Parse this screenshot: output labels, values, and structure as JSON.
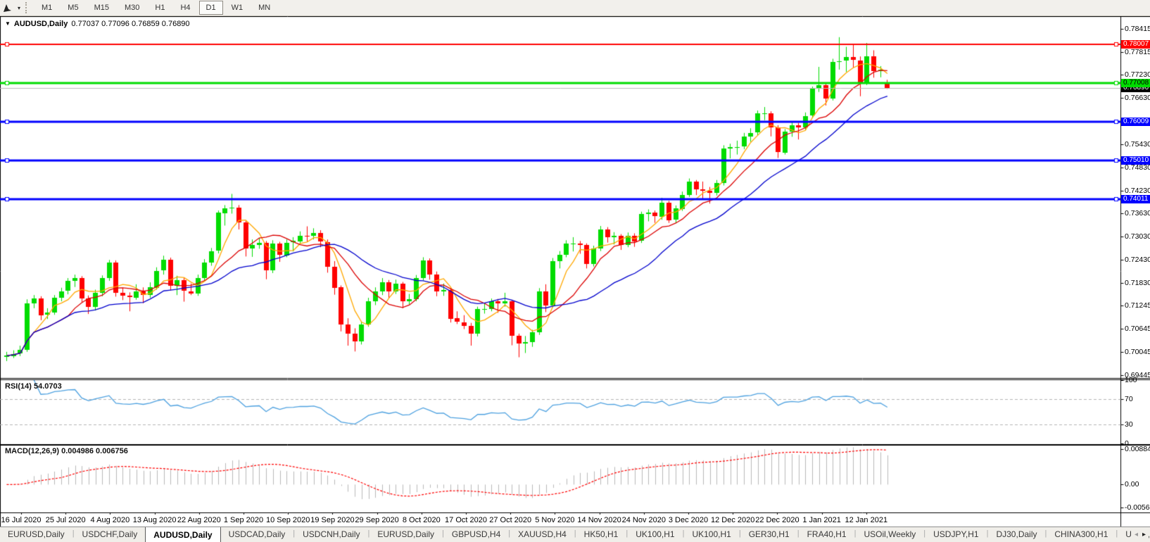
{
  "icons": {
    "dropdown_triangle": "▼",
    "caret_down": "▾",
    "scroll_left": "◂",
    "scroll_right": "▸"
  },
  "toolbar": {
    "timeframes": [
      "M1",
      "M5",
      "M15",
      "M30",
      "H1",
      "H4",
      "D1",
      "W1",
      "MN"
    ],
    "active_timeframe": "D1"
  },
  "chart_header": {
    "symbol_label": "AUDUSD,Daily",
    "ohlc_label": "0.77037 0.77096 0.76859 0.76890"
  },
  "panes": {
    "rsi_label": "RSI(14) 54.0703",
    "macd_label": "MACD(12,26,9) 0.004986 0.006756"
  },
  "tabs": {
    "items": [
      "EURUSD,Daily",
      "USDCHF,Daily",
      "AUDUSD,Daily",
      "USDCAD,Daily",
      "USDCNH,Daily",
      "EURUSD,Daily",
      "GBPUSD,H4",
      "XAUUSD,H4",
      "HK50,H1",
      "UK100,H1",
      "UK100,H1",
      "GER30,H1",
      "FRA40,H1",
      "USOil,Weekly",
      "USDJPY,H1",
      "DJ30,Daily",
      "CHINA300,H1",
      "USOil,"
    ],
    "active_index": 2
  },
  "chart_data": {
    "type": "candlestick",
    "symbol": "AUDUSD",
    "timeframe": "Daily",
    "current": {
      "open": 0.77037,
      "high": 0.77096,
      "low": 0.76859,
      "close": 0.7689
    },
    "ylim": [
      0.69391,
      0.78743
    ],
    "price_ticks": [
      "0.78415",
      "0.77815",
      "0.77230",
      "0.76630",
      "0.75430",
      "0.74830",
      "0.74230",
      "0.73630",
      "0.73030",
      "0.72430",
      "0.71830",
      "0.71245",
      "0.70645",
      "0.70045",
      "0.69445"
    ],
    "badges": [
      {
        "label": "0.78007",
        "price": 0.78007,
        "bg": "#FF0000",
        "fg": "#FFFFFF"
      },
      {
        "label": "0.76890",
        "price": 0.7689,
        "bg": "#000000",
        "fg": "#FFFFFF"
      },
      {
        "label": "0.77008",
        "price": 0.77008,
        "bg": "#00DC00",
        "fg": "#000000"
      },
      {
        "label": "0.76009",
        "price": 0.76009,
        "bg": "#0000FF",
        "fg": "#FFFFFF"
      },
      {
        "label": "0.75010",
        "price": 0.7501,
        "bg": "#0000FF",
        "fg": "#FFFFFF"
      },
      {
        "label": "0.74011",
        "price": 0.74011,
        "bg": "#0000FF",
        "fg": "#FFFFFF"
      }
    ],
    "xticklabels": [
      "16 Jul 2020",
      "25 Jul 2020",
      "4 Aug 2020",
      "13 Aug 2020",
      "22 Aug 2020",
      "1 Sep 2020",
      "10 Sep 2020",
      "19 Sep 2020",
      "29 Sep 2020",
      "8 Oct 2020",
      "17 Oct 2020",
      "27 Oct 2020",
      "5 Nov 2020",
      "14 Nov 2020",
      "24 Nov 2020",
      "3 Dec 2020",
      "12 Dec 2020",
      "22 Dec 2020",
      "1 Jan 2021",
      "12 Jan 2021"
    ],
    "hlines": [
      {
        "price": 0.78007,
        "color": "#FF0000",
        "width": 2
      },
      {
        "price": 0.77008,
        "color": "#00DC00",
        "width": 3
      },
      {
        "price": 0.76009,
        "color": "#0000FF",
        "width": 3
      },
      {
        "price": 0.7501,
        "color": "#0000FF",
        "width": 3
      },
      {
        "price": 0.74011,
        "color": "#0000FF",
        "width": 3
      }
    ],
    "bid_line": {
      "price": 0.7689,
      "color": "#BBBBBB",
      "width": 1
    },
    "overlays": {
      "sma": [
        {
          "period": 5,
          "color": "#FFA800"
        },
        {
          "period": 10,
          "color": "#DC0000"
        },
        {
          "period": 21,
          "color": "#0000CD"
        }
      ]
    },
    "indicators": {
      "rsi": {
        "period": 14,
        "value": 54.0703,
        "levels": [
          70,
          30
        ],
        "ylim": [
          0,
          100
        ],
        "ticks": [
          {
            "label": "100",
            "value": 100
          },
          {
            "label": "70",
            "value": 70
          },
          {
            "label": "30",
            "value": 30
          },
          {
            "label": "0",
            "value": 0
          }
        ],
        "color": "#4DA1E0",
        "level_color": "#B5B5B5"
      },
      "macd": {
        "fast": 12,
        "slow": 26,
        "signal": 9,
        "value": 0.004986,
        "signal_value": 0.006756,
        "ylim": [
          -0.00676,
          0.00971
        ],
        "ticks": [
          {
            "label": "0.00884",
            "value": 0.00884
          },
          {
            "label": "0.00",
            "value": 0
          },
          {
            "label": "-0.00565",
            "value": -0.00565
          }
        ],
        "histogram_color": "#B9B9B9",
        "signal_color": "#FF0000"
      }
    },
    "colors": {
      "bull": "#00DC00",
      "bear": "#FF0000",
      "background": "#FFFFFF",
      "foreground": "#000000"
    },
    "candles": [
      [
        0.6992,
        0.7005,
        0.6981,
        0.6995
      ],
      [
        0.6995,
        0.7009,
        0.6989,
        0.7
      ],
      [
        0.7,
        0.7021,
        0.6994,
        0.701
      ],
      [
        0.701,
        0.7141,
        0.7005,
        0.713
      ],
      [
        0.713,
        0.7152,
        0.7118,
        0.7143
      ],
      [
        0.7143,
        0.7149,
        0.7087,
        0.71
      ],
      [
        0.71,
        0.7118,
        0.709,
        0.7106
      ],
      [
        0.7106,
        0.7152,
        0.7101,
        0.7145
      ],
      [
        0.7145,
        0.7171,
        0.7136,
        0.7162
      ],
      [
        0.7162,
        0.7196,
        0.7154,
        0.7188
      ],
      [
        0.7188,
        0.7205,
        0.7173,
        0.7196
      ],
      [
        0.7196,
        0.7201,
        0.7133,
        0.7143
      ],
      [
        0.7143,
        0.7151,
        0.7103,
        0.7121
      ],
      [
        0.7121,
        0.7166,
        0.7112,
        0.7158
      ],
      [
        0.7158,
        0.7203,
        0.7149,
        0.7196
      ],
      [
        0.7196,
        0.7243,
        0.7189,
        0.7236
      ],
      [
        0.7236,
        0.7242,
        0.7148,
        0.7157
      ],
      [
        0.7157,
        0.7171,
        0.7139,
        0.715
      ],
      [
        0.715,
        0.7159,
        0.711,
        0.7146
      ],
      [
        0.7146,
        0.718,
        0.714,
        0.7162
      ],
      [
        0.7162,
        0.7172,
        0.7131,
        0.7152
      ],
      [
        0.7152,
        0.7185,
        0.7145,
        0.7172
      ],
      [
        0.7172,
        0.7224,
        0.7166,
        0.7215
      ],
      [
        0.7215,
        0.7254,
        0.7205,
        0.7243
      ],
      [
        0.7243,
        0.7249,
        0.7164,
        0.7176
      ],
      [
        0.7176,
        0.7202,
        0.7152,
        0.719
      ],
      [
        0.719,
        0.7198,
        0.7135,
        0.7162
      ],
      [
        0.7162,
        0.7182,
        0.7152,
        0.7156
      ],
      [
        0.7156,
        0.7205,
        0.715,
        0.7196
      ],
      [
        0.7196,
        0.7245,
        0.719,
        0.7236
      ],
      [
        0.7236,
        0.7274,
        0.7228,
        0.7266
      ],
      [
        0.7266,
        0.7371,
        0.726,
        0.7365
      ],
      [
        0.7365,
        0.7385,
        0.7332,
        0.7377
      ],
      [
        0.7377,
        0.7414,
        0.7363,
        0.7378
      ],
      [
        0.7378,
        0.7385,
        0.7322,
        0.734
      ],
      [
        0.734,
        0.7344,
        0.7252,
        0.7272
      ],
      [
        0.7272,
        0.7296,
        0.7251,
        0.7282
      ],
      [
        0.7282,
        0.73,
        0.7272,
        0.7288
      ],
      [
        0.7288,
        0.7292,
        0.7193,
        0.7216
      ],
      [
        0.7216,
        0.7294,
        0.7209,
        0.7286
      ],
      [
        0.7286,
        0.729,
        0.7238,
        0.7256
      ],
      [
        0.7256,
        0.7296,
        0.725,
        0.7288
      ],
      [
        0.7288,
        0.7302,
        0.7265,
        0.7292
      ],
      [
        0.7292,
        0.7317,
        0.7284,
        0.7306
      ],
      [
        0.7306,
        0.733,
        0.729,
        0.7305
      ],
      [
        0.7305,
        0.7325,
        0.7296,
        0.7312
      ],
      [
        0.7312,
        0.732,
        0.7276,
        0.729
      ],
      [
        0.729,
        0.7296,
        0.721,
        0.7226
      ],
      [
        0.7226,
        0.724,
        0.7153,
        0.7172
      ],
      [
        0.7172,
        0.7177,
        0.7058,
        0.7076
      ],
      [
        0.7076,
        0.7092,
        0.7021,
        0.7052
      ],
      [
        0.7052,
        0.7066,
        0.7006,
        0.7032
      ],
      [
        0.7032,
        0.7084,
        0.7024,
        0.7076
      ],
      [
        0.7076,
        0.7145,
        0.707,
        0.7136
      ],
      [
        0.7136,
        0.7172,
        0.7126,
        0.7162
      ],
      [
        0.7162,
        0.7196,
        0.7152,
        0.7186
      ],
      [
        0.7186,
        0.7191,
        0.7144,
        0.7162
      ],
      [
        0.7162,
        0.7192,
        0.7155,
        0.7182
      ],
      [
        0.7182,
        0.7186,
        0.7118,
        0.7136
      ],
      [
        0.7136,
        0.7155,
        0.7128,
        0.7142
      ],
      [
        0.7142,
        0.7204,
        0.7136,
        0.7196
      ],
      [
        0.7196,
        0.725,
        0.719,
        0.7242
      ],
      [
        0.7242,
        0.7247,
        0.7192,
        0.7206
      ],
      [
        0.7206,
        0.7213,
        0.7149,
        0.7162
      ],
      [
        0.7162,
        0.7182,
        0.715,
        0.7166
      ],
      [
        0.7166,
        0.717,
        0.7081,
        0.7092
      ],
      [
        0.7092,
        0.711,
        0.7077,
        0.7082
      ],
      [
        0.7082,
        0.71,
        0.7064,
        0.7072
      ],
      [
        0.7072,
        0.708,
        0.7021,
        0.7052
      ],
      [
        0.7052,
        0.7122,
        0.7045,
        0.7116
      ],
      [
        0.7116,
        0.7132,
        0.7104,
        0.7116
      ],
      [
        0.7116,
        0.7143,
        0.711,
        0.7136
      ],
      [
        0.7136,
        0.7142,
        0.7106,
        0.713
      ],
      [
        0.713,
        0.7158,
        0.7122,
        0.7136
      ],
      [
        0.7136,
        0.714,
        0.7022,
        0.7046
      ],
      [
        0.7046,
        0.7052,
        0.6991,
        0.7026
      ],
      [
        0.7026,
        0.7046,
        0.7002,
        0.703
      ],
      [
        0.703,
        0.7062,
        0.7018,
        0.7056
      ],
      [
        0.7056,
        0.717,
        0.7049,
        0.7162
      ],
      [
        0.7162,
        0.718,
        0.7108,
        0.7126
      ],
      [
        0.7126,
        0.7248,
        0.712,
        0.724
      ],
      [
        0.724,
        0.7266,
        0.7221,
        0.7256
      ],
      [
        0.7256,
        0.7294,
        0.725,
        0.7286
      ],
      [
        0.7286,
        0.7302,
        0.7265,
        0.7286
      ],
      [
        0.7286,
        0.7292,
        0.7259,
        0.7282
      ],
      [
        0.7282,
        0.7286,
        0.7221,
        0.7232
      ],
      [
        0.7232,
        0.728,
        0.7226,
        0.7272
      ],
      [
        0.7272,
        0.7331,
        0.7266,
        0.7322
      ],
      [
        0.7322,
        0.7328,
        0.7288,
        0.7302
      ],
      [
        0.7302,
        0.7315,
        0.7283,
        0.7306
      ],
      [
        0.7306,
        0.731,
        0.7269,
        0.7282
      ],
      [
        0.7282,
        0.7314,
        0.7276,
        0.7306
      ],
      [
        0.7306,
        0.7312,
        0.7277,
        0.7292
      ],
      [
        0.7292,
        0.7368,
        0.7287,
        0.7362
      ],
      [
        0.7362,
        0.7374,
        0.7343,
        0.7366
      ],
      [
        0.7366,
        0.7371,
        0.7339,
        0.7356
      ],
      [
        0.7356,
        0.7404,
        0.7347,
        0.7392
      ],
      [
        0.7392,
        0.7396,
        0.7339,
        0.7346
      ],
      [
        0.7346,
        0.7384,
        0.7338,
        0.7376
      ],
      [
        0.7376,
        0.742,
        0.737,
        0.7412
      ],
      [
        0.7412,
        0.7454,
        0.7406,
        0.7446
      ],
      [
        0.7446,
        0.745,
        0.7411,
        0.7426
      ],
      [
        0.7426,
        0.7446,
        0.7402,
        0.7422
      ],
      [
        0.7422,
        0.7432,
        0.7389,
        0.7416
      ],
      [
        0.7416,
        0.745,
        0.741,
        0.7442
      ],
      [
        0.7442,
        0.754,
        0.7436,
        0.7532
      ],
      [
        0.7532,
        0.7544,
        0.7506,
        0.7536
      ],
      [
        0.7536,
        0.7552,
        0.7516,
        0.7536
      ],
      [
        0.7536,
        0.7572,
        0.753,
        0.7562
      ],
      [
        0.7562,
        0.7584,
        0.7549,
        0.7572
      ],
      [
        0.7572,
        0.763,
        0.7566,
        0.7622
      ],
      [
        0.7622,
        0.7639,
        0.7605,
        0.7622
      ],
      [
        0.7622,
        0.7628,
        0.7563,
        0.7586
      ],
      [
        0.7586,
        0.7592,
        0.7507,
        0.7522
      ],
      [
        0.7522,
        0.7582,
        0.7516,
        0.7576
      ],
      [
        0.7576,
        0.76,
        0.7562,
        0.7592
      ],
      [
        0.7592,
        0.7598,
        0.7555,
        0.7586
      ],
      [
        0.7586,
        0.7625,
        0.758,
        0.7616
      ],
      [
        0.7616,
        0.7692,
        0.761,
        0.7686
      ],
      [
        0.7686,
        0.7743,
        0.7678,
        0.7696
      ],
      [
        0.7696,
        0.7702,
        0.7643,
        0.7662
      ],
      [
        0.7662,
        0.7764,
        0.7656,
        0.7756
      ],
      [
        0.7756,
        0.782,
        0.7736,
        0.7758
      ],
      [
        0.7758,
        0.7795,
        0.773,
        0.7768
      ],
      [
        0.7768,
        0.78,
        0.7741,
        0.776
      ],
      [
        0.776,
        0.777,
        0.7667,
        0.7702
      ],
      [
        0.7702,
        0.7805,
        0.7696,
        0.777
      ],
      [
        0.777,
        0.7786,
        0.7715,
        0.7732
      ],
      [
        0.7732,
        0.7745,
        0.7716,
        0.7736
      ],
      [
        0.77037,
        0.77096,
        0.76859,
        0.7689
      ]
    ]
  }
}
